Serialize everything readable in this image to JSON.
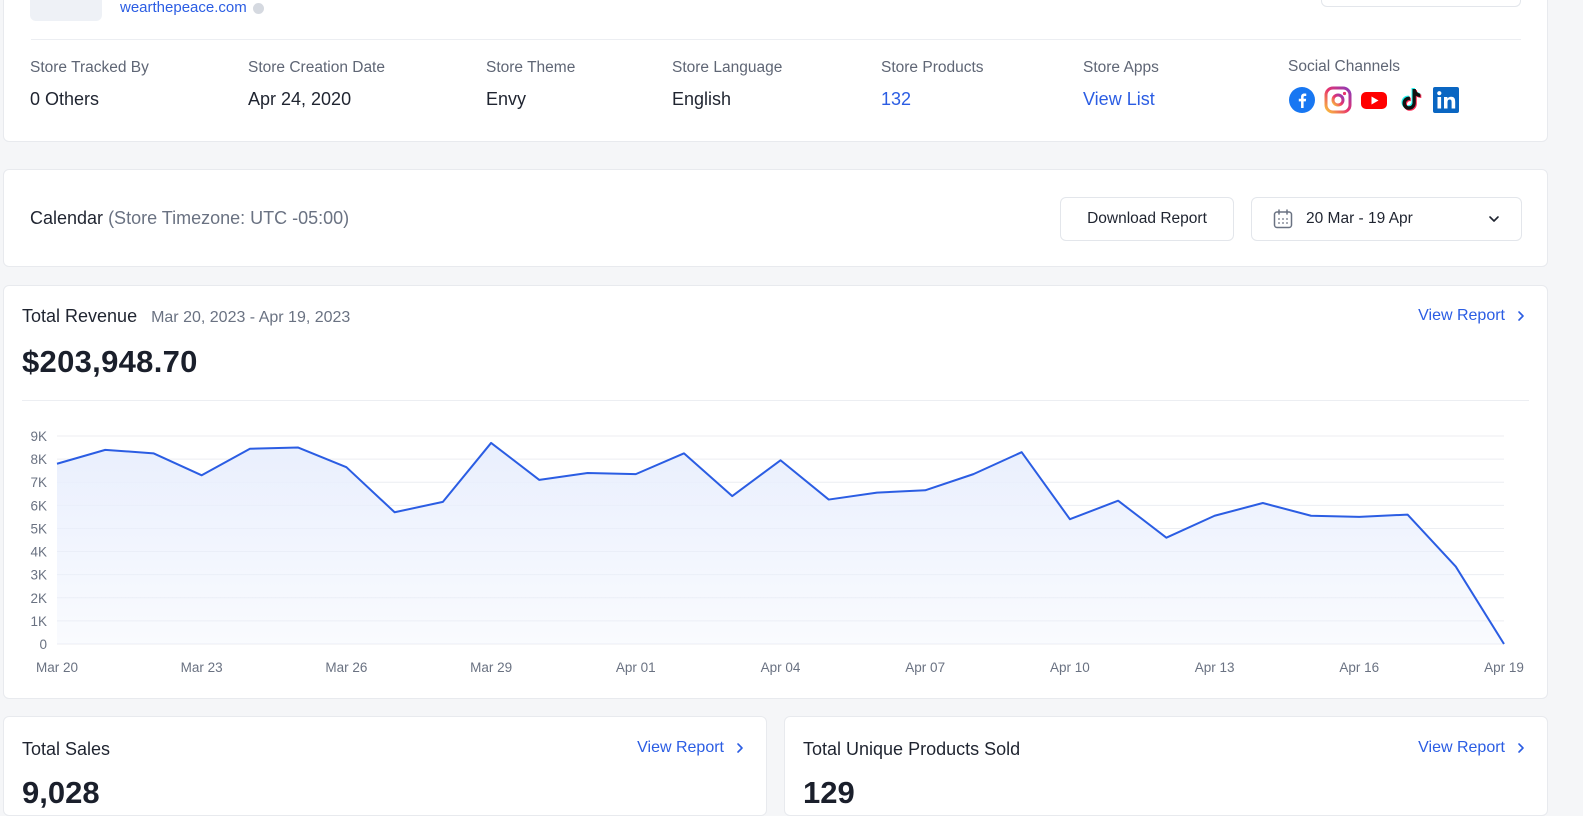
{
  "store": {
    "domain": "wearthepeace.com",
    "fields": [
      {
        "label": "Store Tracked By",
        "value": "0 Others"
      },
      {
        "label": "Store Creation Date",
        "value": "Apr 24, 2020"
      },
      {
        "label": "Store Theme",
        "value": "Envy"
      },
      {
        "label": "Store Language",
        "value": "English"
      },
      {
        "label": "Store Products",
        "value": "132"
      },
      {
        "label": "Store Apps",
        "value": "View List"
      }
    ],
    "social_label": "Social Channels",
    "socials": [
      "facebook-icon",
      "instagram-icon",
      "youtube-icon",
      "tiktok-icon",
      "linkedin-icon"
    ]
  },
  "calendar": {
    "title": "Calendar",
    "timezone": "(Store Timezone: UTC -05:00)",
    "download_label": "Download Report",
    "date_range": "20 Mar - 19 Apr"
  },
  "revenue": {
    "title": "Total Revenue",
    "range": "Mar 20, 2023 - Apr 19, 2023",
    "amount": "$203,948.70",
    "view_report": "View Report"
  },
  "sales": {
    "title": "Total Sales",
    "value": "9,028",
    "view_report": "View Report"
  },
  "unique": {
    "title": "Total Unique Products Sold",
    "value": "129",
    "view_report": "View Report"
  },
  "colors": {
    "accent": "#2b5de3",
    "line": "#2b5de3",
    "fill": "#e9effd"
  },
  "chart_data": {
    "type": "area",
    "title": "Total Revenue",
    "x": [
      "Mar 20",
      "Mar 21",
      "Mar 22",
      "Mar 23",
      "Mar 24",
      "Mar 25",
      "Mar 26",
      "Mar 27",
      "Mar 28",
      "Mar 29",
      "Mar 30",
      "Mar 31",
      "Apr 01",
      "Apr 02",
      "Apr 03",
      "Apr 04",
      "Apr 05",
      "Apr 06",
      "Apr 07",
      "Apr 08",
      "Apr 09",
      "Apr 10",
      "Apr 11",
      "Apr 12",
      "Apr 13",
      "Apr 14",
      "Apr 15",
      "Apr 16",
      "Apr 17",
      "Apr 18",
      "Apr 19"
    ],
    "values": [
      7800,
      8400,
      8250,
      7300,
      8450,
      8500,
      7650,
      5700,
      6150,
      8700,
      7100,
      7400,
      7350,
      8250,
      6400,
      7950,
      6250,
      6550,
      6650,
      7350,
      8300,
      5400,
      6200,
      4600,
      5550,
      6100,
      5550,
      5500,
      5600,
      3350,
      0
    ],
    "x_tick_labels": [
      "Mar 20",
      "Mar 23",
      "Mar 26",
      "Mar 29",
      "Apr 01",
      "Apr 04",
      "Apr 07",
      "Apr 10",
      "Apr 13",
      "Apr 16",
      "Apr 19"
    ],
    "y_tick_labels": [
      "0",
      "1K",
      "2K",
      "3K",
      "4K",
      "5K",
      "6K",
      "7K",
      "8K",
      "9K"
    ],
    "ylim": [
      0,
      9000
    ],
    "grid": true,
    "xlabel": "",
    "ylabel": ""
  }
}
